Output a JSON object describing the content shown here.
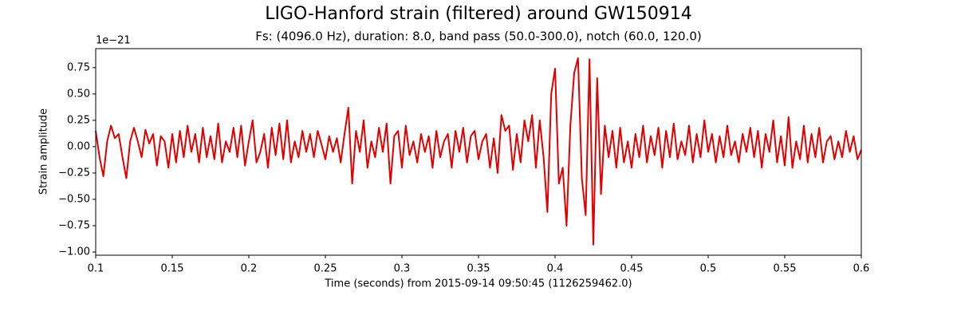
{
  "chart_data": {
    "type": "line",
    "title": "LIGO-Hanford strain (filtered) around GW150914",
    "subtitle": "Fs: (4096.0 Hz), duration: 8.0, band pass (50.0-300.0), notch (60.0, 120.0)",
    "x_label": "Time (seconds) from 2015-09-14 09:50:45 (1126259462.0)",
    "y_label": "Strain amplitude",
    "y_offset_label": "1e−21",
    "color": "#e00000",
    "xlim": [
      0.1,
      0.6
    ],
    "ylim": [
      -1.03,
      0.93
    ],
    "xticks": [
      0.1,
      0.15,
      0.2,
      0.25,
      0.3,
      0.35,
      0.4,
      0.45,
      0.5,
      0.55,
      0.6
    ],
    "yticks": [
      {
        "value": -1.0,
        "label": "−1.00"
      },
      {
        "value": -0.75,
        "label": "−0.75"
      },
      {
        "value": -0.5,
        "label": "−0.50"
      },
      {
        "value": -0.25,
        "label": "−0.25"
      },
      {
        "value": 0,
        "label": "0.00"
      },
      {
        "value": 0.25,
        "label": "0.25"
      },
      {
        "value": 0.5,
        "label": "0.50"
      },
      {
        "value": 0.75,
        "label": "0.75"
      }
    ],
    "x": [
      0.1,
      0.1025,
      0.105,
      0.1075,
      0.11,
      0.1125,
      0.115,
      0.1175,
      0.12,
      0.1225,
      0.125,
      0.1275,
      0.13,
      0.1325,
      0.135,
      0.1375,
      0.14,
      0.1425,
      0.145,
      0.1475,
      0.15,
      0.1525,
      0.155,
      0.1575,
      0.16,
      0.1625,
      0.165,
      0.1675,
      0.17,
      0.1725,
      0.175,
      0.1775,
      0.18,
      0.1825,
      0.185,
      0.1875,
      0.19,
      0.1925,
      0.195,
      0.1975,
      0.2,
      0.2025,
      0.205,
      0.2075,
      0.21,
      0.2125,
      0.215,
      0.2175,
      0.22,
      0.2225,
      0.225,
      0.2275,
      0.23,
      0.2325,
      0.235,
      0.2375,
      0.24,
      0.2425,
      0.245,
      0.2475,
      0.25,
      0.2525,
      0.255,
      0.2575,
      0.26,
      0.2625,
      0.265,
      0.2675,
      0.27,
      0.2725,
      0.275,
      0.2775,
      0.28,
      0.2825,
      0.285,
      0.2875,
      0.29,
      0.2925,
      0.295,
      0.2975,
      0.3,
      0.3025,
      0.305,
      0.3075,
      0.31,
      0.3125,
      0.315,
      0.3175,
      0.32,
      0.3225,
      0.325,
      0.3275,
      0.33,
      0.3325,
      0.335,
      0.3375,
      0.34,
      0.3425,
      0.345,
      0.3475,
      0.35,
      0.3525,
      0.355,
      0.3575,
      0.36,
      0.3625,
      0.365,
      0.3675,
      0.37,
      0.3725,
      0.375,
      0.3775,
      0.38,
      0.3825,
      0.385,
      0.3875,
      0.39,
      0.3925,
      0.395,
      0.3975,
      0.4,
      0.4025,
      0.405,
      0.4075,
      0.41,
      0.4125,
      0.415,
      0.4175,
      0.42,
      0.4225,
      0.425,
      0.4275,
      0.43,
      0.4325,
      0.435,
      0.4375,
      0.44,
      0.4425,
      0.445,
      0.4475,
      0.45,
      0.4525,
      0.455,
      0.4575,
      0.46,
      0.4625,
      0.465,
      0.4675,
      0.47,
      0.4725,
      0.475,
      0.4775,
      0.48,
      0.4825,
      0.485,
      0.4875,
      0.49,
      0.4925,
      0.495,
      0.4975,
      0.5,
      0.5025,
      0.505,
      0.5075,
      0.51,
      0.5125,
      0.515,
      0.5175,
      0.52,
      0.5225,
      0.525,
      0.5275,
      0.53,
      0.5325,
      0.535,
      0.5375,
      0.54,
      0.5425,
      0.545,
      0.5475,
      0.55,
      0.5525,
      0.555,
      0.5575,
      0.56,
      0.5625,
      0.565,
      0.5675,
      0.57,
      0.5725,
      0.575,
      0.5775,
      0.58,
      0.5825,
      0.585,
      0.5875,
      0.59,
      0.5925,
      0.595,
      0.5975,
      0.6
    ],
    "values": [
      0.15,
      -0.1,
      -0.28,
      0.05,
      0.2,
      0.08,
      0.12,
      -0.1,
      -0.3,
      0.05,
      0.18,
      0.05,
      -0.1,
      0.16,
      0.03,
      0.12,
      -0.18,
      0.1,
      0.05,
      -0.2,
      0.12,
      -0.15,
      0.15,
      -0.1,
      0.2,
      -0.05,
      0.12,
      -0.15,
      0.18,
      -0.1,
      0.1,
      -0.12,
      0.22,
      -0.15,
      0.05,
      -0.05,
      0.18,
      -0.1,
      0.2,
      -0.18,
      0.05,
      0.25,
      -0.15,
      -0.05,
      0.12,
      -0.2,
      0.18,
      -0.08,
      0.22,
      -0.12,
      0.25,
      -0.15,
      0.05,
      -0.1,
      0.15,
      -0.05,
      0.12,
      -0.1,
      0.15,
      0.02,
      -0.12,
      0.1,
      -0.05,
      0.08,
      -0.15,
      0.12,
      0.37,
      -0.35,
      0.15,
      -0.05,
      0.25,
      -0.2,
      0.05,
      -0.1,
      0.18,
      -0.05,
      0.22,
      -0.35,
      0.1,
      0.15,
      -0.2,
      0.2,
      -0.08,
      0.05,
      -0.15,
      0.12,
      -0.05,
      0.1,
      -0.2,
      0.15,
      -0.1,
      0.05,
      0.12,
      -0.2,
      0.15,
      -0.05,
      0.18,
      -0.15,
      0.1,
      0.15,
      -0.12,
      0.05,
      0.12,
      -0.2,
      0.08,
      -0.25,
      0.3,
      0.15,
      0.2,
      -0.22,
      0.12,
      -0.15,
      0.25,
      0.05,
      0.3,
      -0.2,
      0.25,
      -0.1,
      -0.62,
      0.5,
      0.74,
      -0.35,
      -0.2,
      -0.75,
      0.2,
      0.7,
      0.84,
      -0.3,
      -0.65,
      0.83,
      -0.93,
      0.65,
      -0.45,
      0.2,
      -0.1,
      0.15,
      -0.2,
      0.18,
      -0.15,
      0.05,
      -0.2,
      0.12,
      -0.1,
      0.2,
      -0.15,
      0.1,
      -0.08,
      0.18,
      -0.2,
      0.15,
      -0.1,
      0.22,
      -0.12,
      0.05,
      -0.08,
      0.2,
      -0.15,
      0.12,
      -0.1,
      0.25,
      -0.05,
      0.12,
      -0.15,
      0.1,
      -0.1,
      0.2,
      -0.08,
      0.05,
      -0.15,
      0.12,
      -0.05,
      0.18,
      -0.1,
      0.15,
      -0.2,
      0.12,
      -0.05,
      0.25,
      -0.15,
      0.1,
      -0.18,
      0.28,
      -0.2,
      0.05,
      -0.12,
      0.2,
      -0.15,
      0.12,
      -0.1,
      0.18,
      -0.15,
      0.05,
      0.1,
      -0.12,
      0.05,
      -0.1,
      0.15,
      -0.05,
      0.1,
      -0.12,
      -0.03
    ]
  }
}
